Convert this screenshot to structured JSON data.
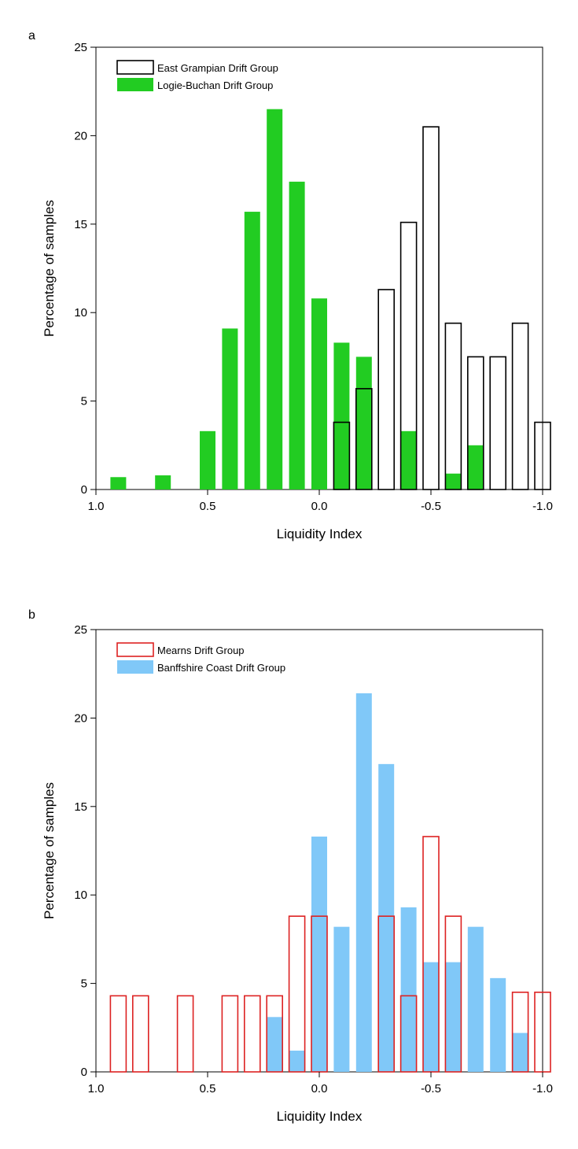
{
  "chart_data": [
    {
      "type": "bar",
      "panel_label": "a",
      "xlabel": "Liquidity Index",
      "ylabel": "Percentage of samples",
      "xlim": [
        1.0,
        -1.0
      ],
      "ylim": [
        0,
        25
      ],
      "x_ticks": [
        1.0,
        0.5,
        0.0,
        -0.5,
        -1.0
      ],
      "x_tick_labels": [
        "1.0",
        "0.5",
        "0.0",
        "-0.5",
        "-1.0"
      ],
      "y_ticks": [
        0,
        5,
        10,
        15,
        20,
        25
      ],
      "y_tick_labels": [
        "0",
        "5",
        "10",
        "15",
        "20",
        "25"
      ],
      "legend_position": "top-left",
      "series": [
        {
          "name": "Logie-Buchan Drift Group",
          "style": "filled",
          "color": "#22cc22",
          "x": [
            0.9,
            0.7,
            0.5,
            0.4,
            0.3,
            0.2,
            0.1,
            0.0,
            -0.1,
            -0.2,
            -0.4,
            -0.6,
            -0.7
          ],
          "values": [
            0.7,
            0.8,
            3.3,
            9.1,
            15.7,
            21.5,
            17.4,
            10.8,
            8.3,
            7.5,
            3.3,
            0.9,
            2.5
          ]
        },
        {
          "name": "East Grampian Drift Group",
          "style": "outline",
          "color": "#000000",
          "x": [
            -0.1,
            -0.2,
            -0.3,
            -0.4,
            -0.5,
            -0.6,
            -0.7,
            -0.8,
            -0.9,
            -1.0
          ],
          "values": [
            3.8,
            5.7,
            11.3,
            15.1,
            20.5,
            9.4,
            7.5,
            7.5,
            9.4,
            3.8
          ]
        }
      ]
    },
    {
      "type": "bar",
      "panel_label": "b",
      "xlabel": "Liquidity Index",
      "ylabel": "Percentage of samples",
      "xlim": [
        1.0,
        -1.0
      ],
      "ylim": [
        0,
        25
      ],
      "x_ticks": [
        1.0,
        0.5,
        0.0,
        -0.5,
        -1.0
      ],
      "x_tick_labels": [
        "1.0",
        "0.5",
        "0.0",
        "-0.5",
        "-1.0"
      ],
      "y_ticks": [
        0,
        5,
        10,
        15,
        20,
        25
      ],
      "y_tick_labels": [
        "0",
        "5",
        "10",
        "15",
        "20",
        "25"
      ],
      "legend_position": "top-left",
      "series": [
        {
          "name": "Banffshire Coast Drift Group",
          "style": "filled",
          "color": "#80c8f8",
          "x": [
            0.2,
            0.1,
            0.0,
            -0.1,
            -0.2,
            -0.3,
            -0.4,
            -0.5,
            -0.6,
            -0.7,
            -0.8,
            -0.9
          ],
          "values": [
            3.1,
            1.2,
            13.3,
            8.2,
            21.4,
            17.4,
            9.3,
            6.2,
            6.2,
            8.2,
            5.3,
            2.2
          ]
        },
        {
          "name": "Mearns Drift Group",
          "style": "outline",
          "color": "#dd2222",
          "x": [
            0.9,
            0.8,
            0.6,
            0.4,
            0.3,
            0.2,
            0.1,
            0.0,
            -0.3,
            -0.4,
            -0.5,
            -0.6,
            -0.9,
            -1.0
          ],
          "values": [
            4.3,
            4.3,
            4.3,
            4.3,
            4.3,
            4.3,
            8.8,
            8.8,
            8.8,
            4.3,
            13.3,
            8.8,
            4.5,
            4.5
          ]
        }
      ]
    }
  ]
}
